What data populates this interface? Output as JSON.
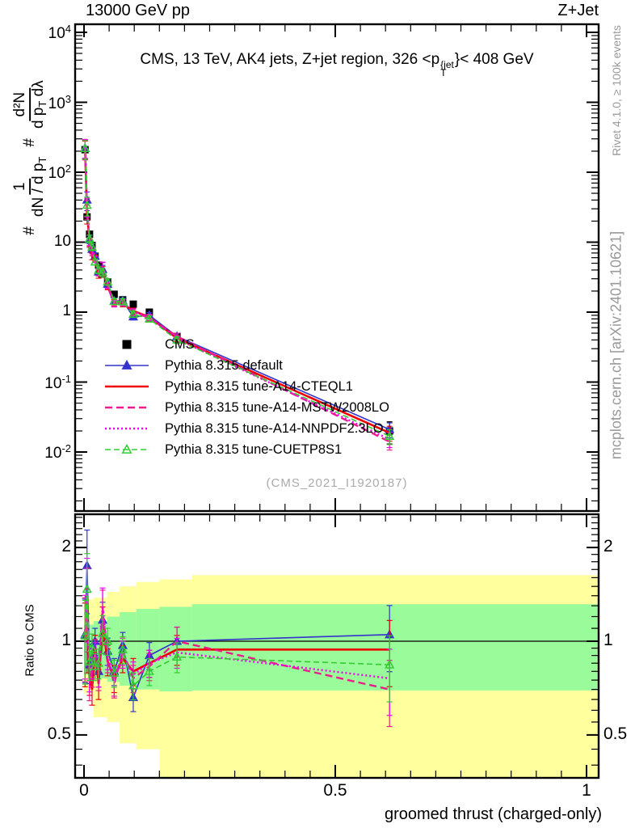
{
  "header": {
    "left": "13000 GeV pp",
    "right": "Z+Jet"
  },
  "panel_title": {
    "prefix": "CMS, 13 TeV, AK4 jets, Z+jet region, 326 <p",
    "sup": "{jet",
    "sub": "T",
    "suffix": "}< 408 GeV"
  },
  "y_axis_label": {
    "hash1": "#",
    "frac1_num": "1",
    "frac1_den": "dN / d p",
    "frac1_den_sub": "T",
    "hash2": "#",
    "frac2_num": "d²N",
    "frac2_den_a": "d p",
    "frac2_den_sub": "T",
    "frac2_den_b": " dλ"
  },
  "watermark": "(CMS_2021_I1920187)",
  "side_notes": {
    "top": "Rivet 4.1.0, ≥ 100k events",
    "bottom": "mcplots.cern.ch [arXiv:2401.10621]"
  },
  "ratio_axis_label": "Ratio to CMS",
  "x_axis": {
    "label": "groomed thrust (charged-only)",
    "ticks": [
      {
        "v": 0,
        "label": "0"
      },
      {
        "v": 0.5,
        "label": "0.5"
      },
      {
        "v": 1,
        "label": "1"
      }
    ]
  },
  "main_y_ticks": [
    {
      "v": 10000,
      "base": "10",
      "exp": "4"
    },
    {
      "v": 1000,
      "base": "10",
      "exp": "3"
    },
    {
      "v": 100,
      "base": "10",
      "exp": "2"
    },
    {
      "v": 10,
      "base": "10",
      "exp": ""
    },
    {
      "v": 1,
      "base": "1",
      "exp": ""
    },
    {
      "v": 0.1,
      "base": "10",
      "exp": "-1"
    },
    {
      "v": 0.01,
      "base": "10",
      "exp": "-2"
    }
  ],
  "ratio_y_ticks": [
    {
      "v": 2,
      "label": "2"
    },
    {
      "v": 1,
      "label": "1"
    },
    {
      "v": 0.5,
      "label": "0.5"
    }
  ],
  "chart_data": {
    "type": "line",
    "title": "CMS, 13 TeV, AK4 jets, Z+jet region, 326 <p_T^{jet}< 408 GeV",
    "xlabel": "groomed thrust (charged-only)",
    "ylabel": "# 1/(dN/dp_T) # d²N/(dp_T dλ)",
    "ratio_ylabel": "Ratio to CMS",
    "xlim": [
      -0.018,
      1.025
    ],
    "main_ylim": [
      0.0015,
      13000
    ],
    "main_yscale": "log",
    "ratio_ylim": [
      0.364,
      2.56
    ],
    "ratio_yscale": "log",
    "x": [
      0.002,
      0.006,
      0.011,
      0.016,
      0.022,
      0.029,
      0.037,
      0.047,
      0.06,
      0.077,
      0.098,
      0.13,
      0.185,
      0.608
    ],
    "cms": {
      "label": "CMS",
      "color": "#000000",
      "marker": "square-filled",
      "values": [
        210,
        23,
        13,
        9.0,
        6.3,
        4.7,
        3.5,
        2.7,
        1.8,
        1.5,
        1.3,
        1.0,
        0.45,
        0.02
      ],
      "last_bin_rel_err": 0.35
    },
    "series": [
      {
        "name": "Pythia 8.315 default",
        "color": "#3333cc",
        "dash": "",
        "width": 1.6,
        "marker": "triangle-filled",
        "ratio": [
          1.05,
          1.75,
          0.84,
          0.88,
          1.0,
          0.8,
          1.17,
          0.93,
          0.8,
          0.97,
          0.66,
          0.9,
          1.0,
          1.05
        ]
      },
      {
        "name": "Pythia 8.315 tune-A14-CTEQL1",
        "color": "#ee0000",
        "dash": "",
        "width": 2.6,
        "marker": "none",
        "ratio": [
          1.02,
          1.13,
          0.77,
          0.7,
          0.95,
          0.73,
          1.13,
          0.86,
          0.76,
          0.88,
          0.8,
          0.85,
          0.94,
          0.94
        ]
      },
      {
        "name": "Pythia 8.315 tune-A14-MSTW2008LO",
        "color": "#e91e8c",
        "dash": "9 5",
        "width": 2.4,
        "marker": "none",
        "ratio": [
          1.06,
          1.32,
          0.74,
          0.8,
          0.92,
          0.78,
          1.28,
          0.88,
          0.73,
          0.93,
          0.76,
          0.83,
          1.0,
          0.7
        ]
      },
      {
        "name": "Pythia 8.315 tune-A14-NNPDF2.3LO",
        "color": "#ee00ee",
        "dash": "2 3",
        "width": 2.4,
        "marker": "none",
        "ratio": [
          1.08,
          1.42,
          0.79,
          0.85,
          0.9,
          0.8,
          1.3,
          0.9,
          0.74,
          0.91,
          0.78,
          0.85,
          0.92,
          0.76
        ]
      },
      {
        "name": "Pythia 8.315 tune-CUETP8S1",
        "color": "#33cc33",
        "dash": "7 4",
        "width": 1.6,
        "marker": "triangle-open",
        "ratio": [
          1.04,
          1.47,
          0.86,
          0.95,
          0.83,
          0.85,
          1.06,
          1.0,
          0.79,
          0.94,
          0.72,
          0.8,
          0.89,
          0.84
        ]
      }
    ],
    "ratio_rel_err": [
      0.3,
      0.3,
      0.13,
      0.11,
      0.1,
      0.11,
      0.14,
      0.1,
      0.1,
      0.1,
      0.1,
      0.1,
      0.11,
      0.24
    ],
    "bands": {
      "yellow": {
        "color": "#ffff9e",
        "segments": [
          [
            0.0,
            0.019,
            0.68,
            1.36
          ],
          [
            0.019,
            0.046,
            0.57,
            1.38
          ],
          [
            0.046,
            0.071,
            0.55,
            1.44
          ],
          [
            0.071,
            0.104,
            0.47,
            1.5
          ],
          [
            0.104,
            0.15,
            0.45,
            1.55
          ],
          [
            0.15,
            0.215,
            0.3,
            1.58
          ],
          [
            0.215,
            1.025,
            0.365,
            1.63
          ]
        ]
      },
      "green": {
        "color": "#9afb9a",
        "segments": [
          [
            0.0,
            0.019,
            0.78,
            1.13
          ],
          [
            0.019,
            0.046,
            0.76,
            1.16
          ],
          [
            0.046,
            0.071,
            0.74,
            1.2
          ],
          [
            0.071,
            0.104,
            0.72,
            1.24
          ],
          [
            0.104,
            0.15,
            0.7,
            1.27
          ],
          [
            0.15,
            0.215,
            0.69,
            1.29
          ],
          [
            0.215,
            1.025,
            0.695,
            1.315
          ]
        ]
      }
    },
    "reference_line": 1.0,
    "legend_position": "inside-left-middle",
    "grid": false
  }
}
